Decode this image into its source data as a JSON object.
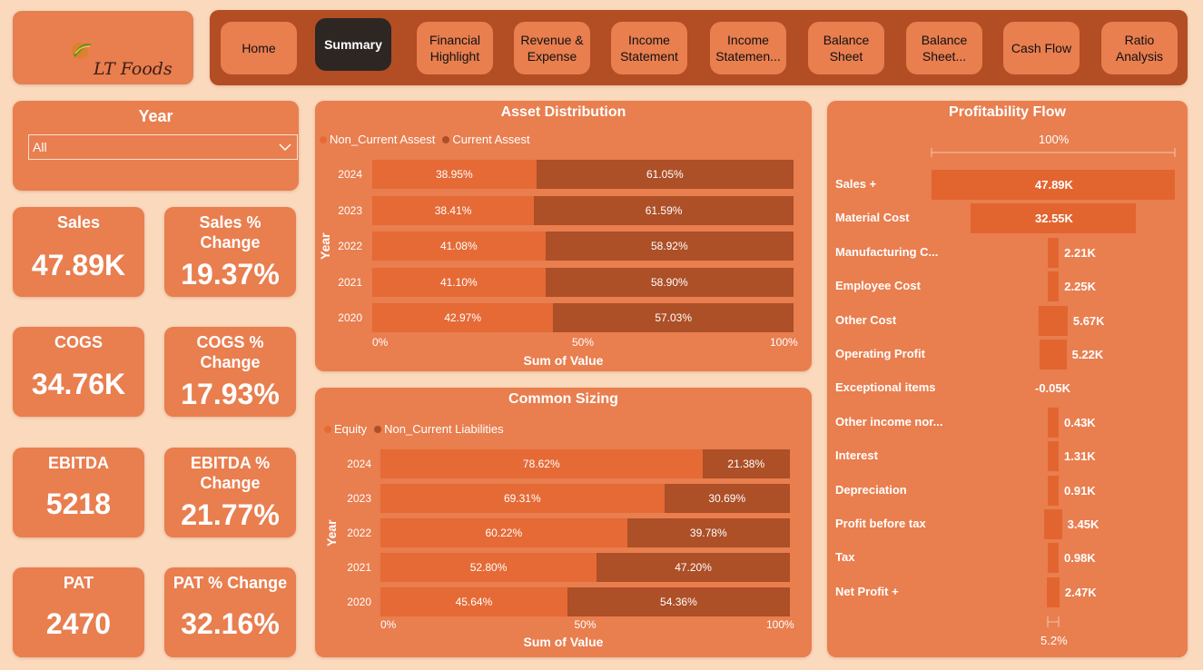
{
  "logo": {
    "brand": "LT Foods"
  },
  "nav": {
    "items": [
      {
        "label": "Home"
      },
      {
        "label": "Summary"
      },
      {
        "label": "Financial Highlight"
      },
      {
        "label": "Revenue & Expense"
      },
      {
        "label": "Income Statement"
      },
      {
        "label": "Income Statemen..."
      },
      {
        "label": "Balance Sheet"
      },
      {
        "label": "Balance Sheet..."
      },
      {
        "label": "Cash Flow"
      },
      {
        "label": "Ratio Analysis"
      }
    ],
    "active": "Summary"
  },
  "year_slicer": {
    "title": "Year",
    "selected": "All"
  },
  "kpis": {
    "sales": {
      "label": "Sales",
      "value": "47.89K"
    },
    "sales_change": {
      "label": "Sales % Change",
      "value": "19.37%"
    },
    "cogs": {
      "label": "COGS",
      "value": "34.76K"
    },
    "cogs_change": {
      "label": "COGS % Change",
      "value": "17.93%"
    },
    "ebitda": {
      "label": "EBITDA",
      "value": "5218"
    },
    "ebitda_change": {
      "label": "EBITDA % Change",
      "value": "21.77%"
    },
    "pat": {
      "label": "PAT",
      "value": "2470"
    },
    "pat_change": {
      "label": "PAT % Change",
      "value": "32.16%"
    }
  },
  "colors": {
    "series_a": "#e56a36",
    "series_b": "#ad4f27",
    "card": "#e97e4f",
    "background": "#fbd9bd"
  },
  "chart_data": [
    {
      "type": "bar",
      "orientation": "horizontal-100%-stacked",
      "title": "Asset Distribution",
      "xlabel": "Sum of Value",
      "ylabel": "Year",
      "categories": [
        "2024",
        "2023",
        "2022",
        "2021",
        "2020"
      ],
      "series": [
        {
          "name": "Non_Current Assest",
          "values": [
            38.95,
            38.41,
            41.08,
            41.1,
            42.97
          ],
          "labels": [
            "38.95%",
            "38.41%",
            "41.08%",
            "41.10%",
            "42.97%"
          ]
        },
        {
          "name": "Current Assest",
          "values": [
            61.05,
            61.59,
            58.92,
            58.9,
            57.03
          ],
          "labels": [
            "61.05%",
            "61.59%",
            "58.92%",
            "58.90%",
            "57.03%"
          ]
        }
      ],
      "xticks": [
        "0%",
        "50%",
        "100%"
      ],
      "legend": "top-left"
    },
    {
      "type": "bar",
      "orientation": "horizontal-100%-stacked",
      "title": "Common Sizing",
      "xlabel": "Sum of Value",
      "ylabel": "Year",
      "categories": [
        "2024",
        "2023",
        "2022",
        "2021",
        "2020"
      ],
      "series": [
        {
          "name": "Equity",
          "values": [
            78.62,
            69.31,
            60.22,
            52.8,
            45.64
          ],
          "labels": [
            "78.62%",
            "69.31%",
            "60.22%",
            "52.80%",
            "45.64%"
          ]
        },
        {
          "name": "Non_Current Liabilities",
          "values": [
            21.38,
            30.69,
            39.78,
            47.2,
            54.36
          ],
          "labels": [
            "21.38%",
            "30.69%",
            "39.78%",
            "47.20%",
            "54.36%"
          ]
        }
      ],
      "xticks": [
        "0%",
        "50%",
        "100%"
      ],
      "legend": "top-left"
    },
    {
      "type": "funnel",
      "title": "Profitability Flow",
      "top_label": "100%",
      "bottom_label": "5.2%",
      "categories": [
        "Sales +",
        "Material Cost",
        "Manufacturing C...",
        "Employee Cost",
        "Other Cost",
        "Operating Profit",
        "Exceptional items",
        "Other income nor...",
        "Interest",
        "Depreciation",
        "Profit before tax",
        "Tax",
        "Net Profit +"
      ],
      "values": [
        47.89,
        32.55,
        2.21,
        2.25,
        5.67,
        5.22,
        -0.05,
        0.43,
        1.31,
        0.91,
        3.45,
        0.98,
        2.47
      ],
      "labels": [
        "47.89K",
        "32.55K",
        "2.21K",
        "2.25K",
        "5.67K",
        "5.22K",
        "-0.05K",
        "0.43K",
        "1.31K",
        "0.91K",
        "3.45K",
        "0.98K",
        "2.47K"
      ]
    }
  ]
}
